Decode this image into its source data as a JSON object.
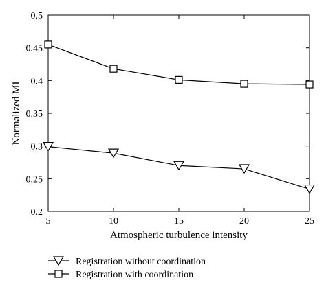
{
  "chart_data": {
    "type": "line",
    "xlabel": "Atmospheric turbulence intensity",
    "ylabel": "Normalized MI",
    "x": [
      5,
      10,
      15,
      20,
      25
    ],
    "xlim": [
      5,
      25
    ],
    "ylim": [
      0.2,
      0.5
    ],
    "xticks": [
      "5",
      "10",
      "15",
      "20",
      "25"
    ],
    "yticks": [
      "0.2",
      "0.25",
      "0.3",
      "0.35",
      "0.4",
      "0.45",
      "0.5"
    ],
    "grid": false,
    "legend_position": "bottom",
    "series": [
      {
        "name": "Registration with coordination",
        "marker": "square",
        "values": [
          0.455,
          0.418,
          0.401,
          0.395,
          0.394
        ]
      },
      {
        "name": "Registration without coordination",
        "marker": "triangle-down",
        "values": [
          0.299,
          0.289,
          0.27,
          0.265,
          0.234
        ]
      }
    ],
    "legend": [
      {
        "label": "Registration without coordination",
        "marker": "triangle-down"
      },
      {
        "label": "Registration with coordination",
        "marker": "square"
      }
    ]
  }
}
